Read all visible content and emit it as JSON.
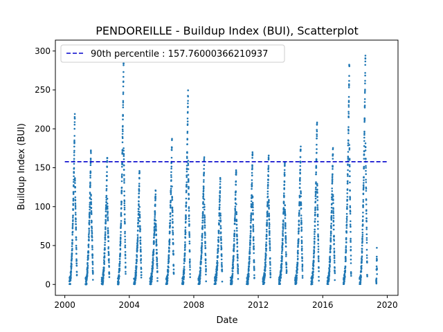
{
  "chart_data": {
    "type": "scatter",
    "title": "PENDOREILLE - Buildup Index (BUI), Scatterplot",
    "xlabel": "Date",
    "ylabel": "Buildup Index (BUI)",
    "xlim": [
      "1999-06-01",
      "2020-09-01"
    ],
    "ylim": [
      -14,
      314
    ],
    "x_ticks": [
      "2000",
      "2004",
      "2008",
      "2012",
      "2016",
      "2020"
    ],
    "y_ticks": [
      0,
      50,
      100,
      150,
      200,
      250,
      300
    ],
    "grid": false,
    "legend": {
      "placement": "top-left",
      "label": "90th percentile : 157.76000366210937"
    },
    "reference_line": {
      "y": 157.76000366210937,
      "style": "dashed",
      "color": "#0000cc"
    },
    "point_color": "#1f77b4",
    "series": [
      {
        "note_seasons": "Each fire season ramps from low values in late spring to a peak, then drops; points listed as [date, BUI] peaks per season",
        "seasons": [
          {
            "start": "2000-04-15",
            "peak_date": "2000-08-15",
            "end": "2000-10-01",
            "peak": 220
          },
          {
            "start": "2001-04-15",
            "peak_date": "2001-08-15",
            "end": "2001-10-01",
            "peak": 173
          },
          {
            "start": "2002-04-15",
            "peak_date": "2002-08-20",
            "end": "2002-10-05",
            "peak": 165
          },
          {
            "start": "2003-04-15",
            "peak_date": "2003-08-25",
            "end": "2003-10-10",
            "peak": 285
          },
          {
            "start": "2004-04-15",
            "peak_date": "2004-08-20",
            "end": "2004-10-01",
            "peak": 147
          },
          {
            "start": "2005-04-15",
            "peak_date": "2005-08-20",
            "end": "2005-10-01",
            "peak": 122
          },
          {
            "start": "2006-04-15",
            "peak_date": "2006-08-25",
            "end": "2006-10-05",
            "peak": 188
          },
          {
            "start": "2007-04-15",
            "peak_date": "2007-08-25",
            "end": "2007-10-10",
            "peak": 250
          },
          {
            "start": "2008-04-15",
            "peak_date": "2008-08-25",
            "end": "2008-10-05",
            "peak": 164
          },
          {
            "start": "2009-04-15",
            "peak_date": "2009-08-25",
            "end": "2009-10-05",
            "peak": 137
          },
          {
            "start": "2010-04-15",
            "peak_date": "2010-08-20",
            "end": "2010-10-01",
            "peak": 150
          },
          {
            "start": "2011-04-15",
            "peak_date": "2011-08-25",
            "end": "2011-10-05",
            "peak": 170
          },
          {
            "start": "2012-04-15",
            "peak_date": "2012-08-25",
            "end": "2012-10-05",
            "peak": 168
          },
          {
            "start": "2013-04-15",
            "peak_date": "2013-08-25",
            "end": "2013-10-05",
            "peak": 157
          },
          {
            "start": "2014-04-15",
            "peak_date": "2014-08-20",
            "end": "2014-10-01",
            "peak": 181
          },
          {
            "start": "2015-04-15",
            "peak_date": "2015-08-25",
            "end": "2015-10-05",
            "peak": 209
          },
          {
            "start": "2016-04-15",
            "peak_date": "2016-08-20",
            "end": "2016-10-01",
            "peak": 176
          },
          {
            "start": "2017-04-15",
            "peak_date": "2017-08-25",
            "end": "2017-10-05",
            "peak": 285
          },
          {
            "start": "2018-04-15",
            "peak_date": "2018-08-25",
            "end": "2018-10-05",
            "peak": 296
          },
          {
            "start": "2019-04-25",
            "peak_date": "2019-05-10",
            "end": "2019-05-15",
            "peak": 48
          }
        ]
      }
    ]
  }
}
